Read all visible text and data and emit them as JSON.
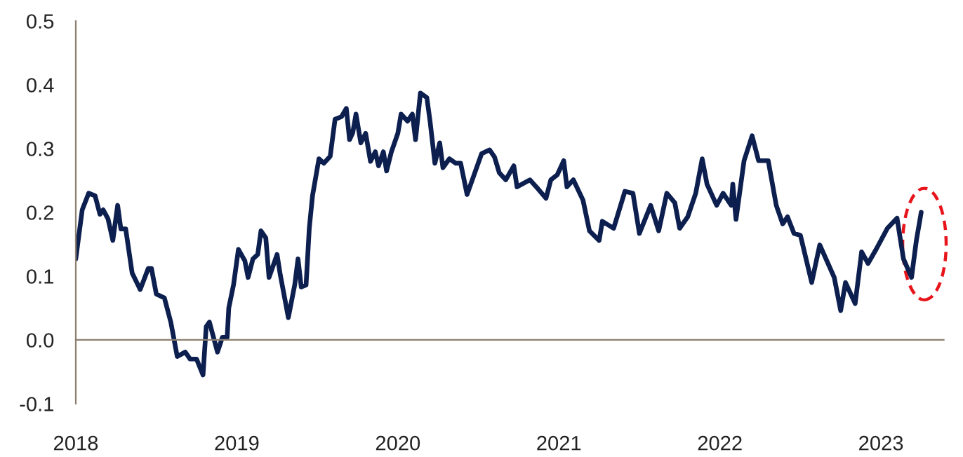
{
  "chart_data": {
    "type": "line",
    "x": [
      2018.0,
      2018.04,
      2018.08,
      2018.12,
      2018.15,
      2018.17,
      2018.2,
      2018.23,
      2018.26,
      2018.28,
      2018.31,
      2018.35,
      2018.4,
      2018.45,
      2018.47,
      2018.5,
      2018.55,
      2018.59,
      2018.63,
      2018.68,
      2018.71,
      2018.75,
      2018.79,
      2018.81,
      2018.83,
      2018.85,
      2018.88,
      2018.91,
      2018.94,
      2018.95,
      2018.98,
      2019.01,
      2019.05,
      2019.07,
      2019.1,
      2019.13,
      2019.15,
      2019.18,
      2019.2,
      2019.25,
      2019.27,
      2019.32,
      2019.36,
      2019.38,
      2019.4,
      2019.43,
      2019.45,
      2019.47,
      2019.51,
      2019.54,
      2019.58,
      2019.61,
      2019.65,
      2019.68,
      2019.7,
      2019.72,
      2019.74,
      2019.77,
      2019.8,
      2019.83,
      2019.86,
      2019.88,
      2019.91,
      2019.93,
      2019.96,
      2020.0,
      2020.02,
      2020.06,
      2020.09,
      2020.11,
      2020.14,
      2020.18,
      2020.2,
      2020.23,
      2020.26,
      2020.28,
      2020.32,
      2020.36,
      2020.39,
      2020.43,
      2020.52,
      2020.57,
      2020.6,
      2020.63,
      2020.67,
      2020.72,
      2020.74,
      2020.82,
      2020.87,
      2020.92,
      2020.95,
      2020.99,
      2021.03,
      2021.05,
      2021.09,
      2021.15,
      2021.19,
      2021.25,
      2021.27,
      2021.34,
      2021.41,
      2021.46,
      2021.5,
      2021.57,
      2021.62,
      2021.67,
      2021.72,
      2021.75,
      2021.8,
      2021.85,
      2021.89,
      2021.92,
      2021.98,
      2022.02,
      2022.07,
      2022.08,
      2022.1,
      2022.15,
      2022.2,
      2022.24,
      2022.3,
      2022.35,
      2022.39,
      2022.42,
      2022.46,
      2022.5,
      2022.57,
      2022.62,
      2022.71,
      2022.75,
      2022.78,
      2022.84,
      2022.88,
      2022.92,
      2022.97,
      2023.04,
      2023.1,
      2023.14,
      2023.19,
      2023.22,
      2023.25
    ],
    "values": [
      0.127,
      0.204,
      0.23,
      0.226,
      0.197,
      0.204,
      0.19,
      0.156,
      0.211,
      0.174,
      0.174,
      0.105,
      0.079,
      0.112,
      0.112,
      0.072,
      0.066,
      0.028,
      -0.026,
      -0.019,
      -0.03,
      -0.03,
      -0.055,
      0.021,
      0.028,
      0.009,
      -0.019,
      0.004,
      0.004,
      0.05,
      0.087,
      0.142,
      0.124,
      0.098,
      0.127,
      0.134,
      0.171,
      0.16,
      0.098,
      0.134,
      0.102,
      0.035,
      0.087,
      0.127,
      0.083,
      0.086,
      0.175,
      0.226,
      0.284,
      0.277,
      0.288,
      0.346,
      0.35,
      0.363,
      0.314,
      0.325,
      0.354,
      0.309,
      0.324,
      0.28,
      0.295,
      0.273,
      0.295,
      0.265,
      0.295,
      0.324,
      0.354,
      0.343,
      0.354,
      0.314,
      0.387,
      0.38,
      0.343,
      0.277,
      0.309,
      0.27,
      0.284,
      0.277,
      0.277,
      0.228,
      0.292,
      0.298,
      0.287,
      0.262,
      0.251,
      0.273,
      0.24,
      0.251,
      0.237,
      0.222,
      0.251,
      0.259,
      0.281,
      0.24,
      0.251,
      0.219,
      0.171,
      0.156,
      0.186,
      0.175,
      0.233,
      0.23,
      0.167,
      0.211,
      0.171,
      0.23,
      0.215,
      0.175,
      0.193,
      0.23,
      0.284,
      0.244,
      0.211,
      0.23,
      0.211,
      0.244,
      0.189,
      0.281,
      0.32,
      0.281,
      0.281,
      0.211,
      0.182,
      0.193,
      0.167,
      0.164,
      0.09,
      0.149,
      0.098,
      0.046,
      0.09,
      0.057,
      0.138,
      0.12,
      0.142,
      0.175,
      0.191,
      0.127,
      0.098,
      0.156,
      0.2
    ],
    "color": "#0c1f4f",
    "xlim": [
      2018,
      2023.39
    ],
    "xticks": [
      2018,
      2019,
      2020,
      2021,
      2022,
      2023
    ],
    "ylim": [
      -0.1,
      0.5
    ],
    "yticks": [
      -0.1,
      {
        "value": 0,
        "label": "0.0"
      },
      0.1,
      0.2,
      0.3,
      0.4,
      0.5
    ],
    "legend": false,
    "marker": "none",
    "line_style": "solid"
  }
}
